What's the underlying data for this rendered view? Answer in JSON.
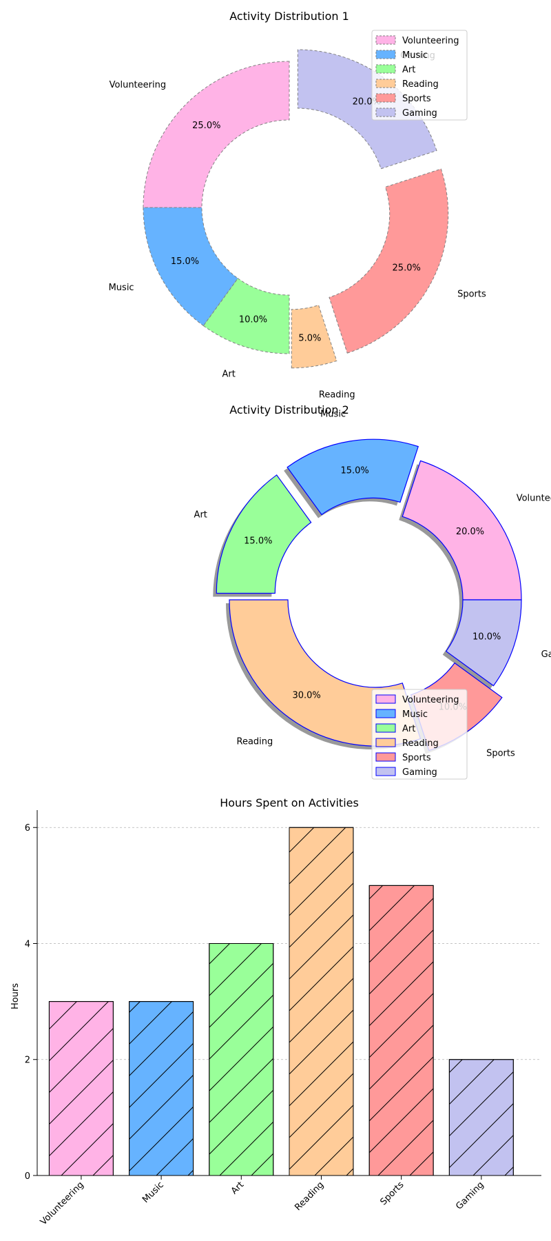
{
  "chart_data": [
    {
      "type": "pie",
      "variant": "donut",
      "title": "Activity Distribution 1",
      "categories": [
        "Volunteering",
        "Music",
        "Art",
        "Reading",
        "Sports",
        "Gaming"
      ],
      "values": [
        25,
        15,
        10,
        5,
        25,
        20
      ],
      "percent_labels": [
        "25.0%",
        "15.0%",
        "10.0%",
        "5.0%",
        "25.0%",
        "20.0%"
      ],
      "colors": [
        "#ffb3e6",
        "#66b3ff",
        "#99ff99",
        "#ffcc99",
        "#ff9999",
        "#c2c2f0"
      ],
      "exploded": [
        "Reading",
        "Sports",
        "Gaming"
      ],
      "edge_style": "dashed gray",
      "legend": {
        "position": "top-right",
        "entries": [
          "Volunteering",
          "Music",
          "Art",
          "Reading",
          "Sports",
          "Gaming"
        ]
      }
    },
    {
      "type": "pie",
      "variant": "donut",
      "title": "Activity Distribution 2",
      "categories": [
        "Volunteering",
        "Music",
        "Art",
        "Reading",
        "Sports",
        "Gaming"
      ],
      "values": [
        20,
        15,
        15,
        30,
        10,
        10
      ],
      "percent_labels": [
        "20.0%",
        "15.0%",
        "15.0%",
        "30.0%",
        "10.0%",
        "10.0%"
      ],
      "colors": [
        "#ffb3e6",
        "#66b3ff",
        "#99ff99",
        "#ffcc99",
        "#ff9999",
        "#c2c2f0"
      ],
      "exploded": [
        "Music",
        "Art",
        "Sports"
      ],
      "shadow": true,
      "edge_style": "solid blue",
      "legend": {
        "position": "bottom-right",
        "entries": [
          "Volunteering",
          "Music",
          "Art",
          "Reading",
          "Sports",
          "Gaming"
        ]
      }
    },
    {
      "type": "bar",
      "title": "Hours Spent on Activities",
      "categories": [
        "Volunteering",
        "Music",
        "Art",
        "Reading",
        "Sports",
        "Gaming"
      ],
      "values": [
        3,
        3,
        4,
        6,
        5,
        2
      ],
      "colors": [
        "#ffb3e6",
        "#66b3ff",
        "#99ff99",
        "#ffcc99",
        "#ff9999",
        "#c2c2f0"
      ],
      "hatch": "diagonal",
      "xlabel": "",
      "ylabel": "Hours",
      "ylim": [
        0,
        6.3
      ],
      "yticks": [
        0,
        2,
        4,
        6
      ],
      "grid": "y dashed"
    }
  ]
}
